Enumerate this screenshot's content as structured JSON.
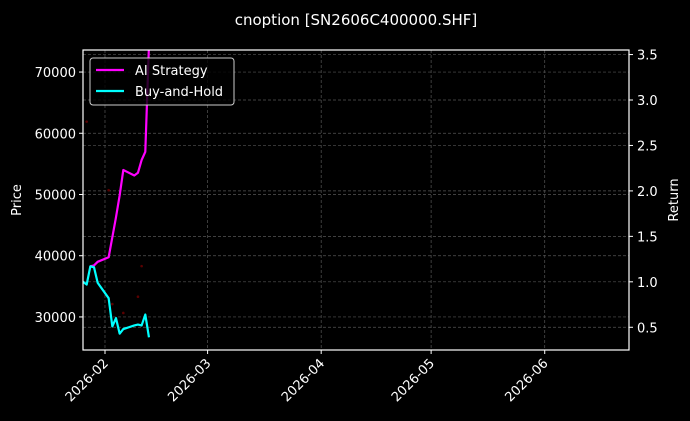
{
  "chart_data": {
    "type": "line",
    "title": "cnoption [SN2606C400000.SHF]",
    "xlabel": "",
    "ylabel_left": "Price",
    "ylabel_right": "Return",
    "x_ticks": [
      "2026-02",
      "2026-03",
      "2026-04",
      "2026-05",
      "2026-06"
    ],
    "xlim": [
      "2026-01-26",
      "2026-06-24"
    ],
    "ylim_left": [
      24600,
      73600
    ],
    "ylim_right": [
      0.25,
      3.55
    ],
    "y_ticks_left": [
      "30000",
      "40000",
      "50000",
      "60000",
      "70000"
    ],
    "y_ticks_right": [
      "0.5",
      "1.0",
      "1.5",
      "2.0",
      "2.5",
      "3.0",
      "3.5"
    ],
    "grid": true,
    "legend_position": "top-left",
    "series": [
      {
        "name": "AI Strategy",
        "axis": "right",
        "color": "#ff00ff",
        "x": [
          "2026-01-28",
          "2026-01-29",
          "2026-01-30",
          "2026-02-02",
          "2026-02-03",
          "2026-02-04",
          "2026-02-05",
          "2026-02-06",
          "2026-02-09",
          "2026-02-10",
          "2026-02-11",
          "2026-02-12",
          "2026-02-13"
        ],
        "values": [
          1.17,
          1.18,
          1.22,
          1.27,
          1.49,
          1.71,
          1.95,
          2.23,
          2.17,
          2.2,
          2.34,
          2.43,
          3.6
        ]
      },
      {
        "name": "Buy-and-Hold",
        "axis": "right",
        "color": "#00ffff",
        "x": [
          "2026-01-26",
          "2026-01-27",
          "2026-01-28",
          "2026-01-29",
          "2026-01-30",
          "2026-02-02",
          "2026-02-03",
          "2026-02-04",
          "2026-02-05",
          "2026-02-06",
          "2026-02-09",
          "2026-02-10",
          "2026-02-11",
          "2026-02-12",
          "2026-02-13"
        ],
        "values": [
          1.0,
          0.97,
          1.17,
          1.16,
          0.99,
          0.82,
          0.51,
          0.6,
          0.43,
          0.48,
          0.52,
          0.53,
          0.52,
          0.64,
          0.39
        ]
      },
      {
        "axis": "left",
        "color": "#5a0000",
        "marker": "dot",
        "x": [
          "2026-01-27",
          "2026-02-02",
          "2026-02-03",
          "2026-02-06",
          "2026-02-10",
          "2026-02-11"
        ],
        "values": [
          61900,
          50700,
          32100,
          30650,
          33300,
          38300
        ]
      }
    ]
  }
}
